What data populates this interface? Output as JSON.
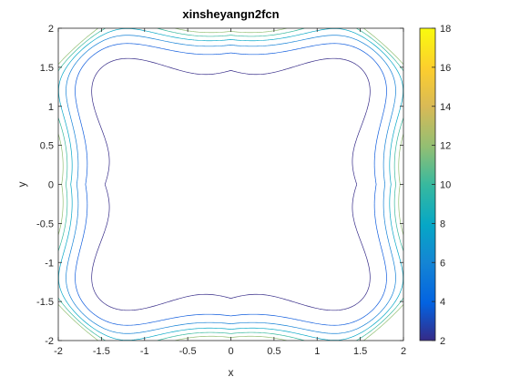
{
  "chart_data": {
    "type": "contour",
    "title": "xinsheyangn2fcn",
    "xlabel": "x",
    "ylabel": "y",
    "xlim": [
      -2,
      2
    ],
    "ylim": [
      -2,
      2
    ],
    "x_ticks": [
      "-2",
      "-1.5",
      "-1",
      "-0.5",
      "0",
      "0.5",
      "1",
      "1.5",
      "2"
    ],
    "y_ticks": [
      "-2",
      "-1.5",
      "-1",
      "-0.5",
      "0",
      "0.5",
      "1",
      "1.5",
      "2"
    ],
    "colorbar": {
      "range": [
        2,
        18
      ],
      "ticks": [
        "2",
        "4",
        "6",
        "8",
        "10",
        "12",
        "14",
        "16",
        "18"
      ],
      "colormap": "parula"
    },
    "contour_levels": [
      2,
      4,
      6,
      8,
      10,
      12
    ],
    "grid": false,
    "colors": {
      "level_2": "#352a87",
      "level_4": "#0f5cdd",
      "level_6": "#1481d6",
      "level_8": "#06a7c6",
      "level_10": "#38b99e",
      "level_12": "#92bf73"
    }
  }
}
